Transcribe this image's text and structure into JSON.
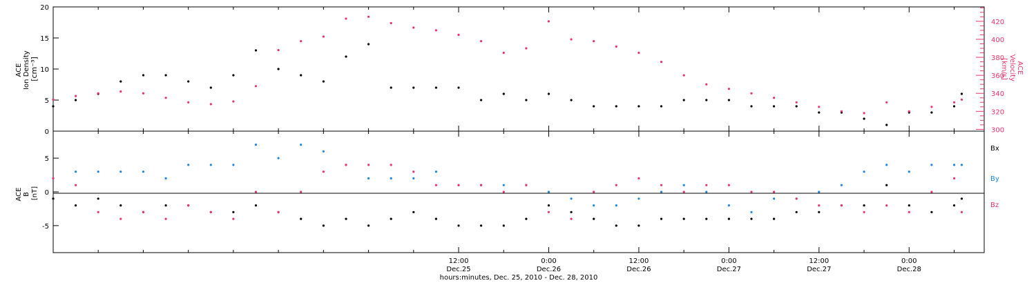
{
  "colors": {
    "black": "#000000",
    "pink": "#e8336b",
    "blue": "#1c86e0"
  },
  "chart_data": [
    {
      "type": "scatter",
      "panel": "top",
      "x_unit": "hours since Dec.25 00:00",
      "xlim": [
        -42,
        82
      ],
      "left_axis": {
        "label_lines": [
          "ACE",
          "Ion Density",
          "[cm⁻³]"
        ],
        "ylim": [
          0,
          20
        ],
        "ticks": [
          "0",
          "5",
          "10",
          "15",
          "20"
        ]
      },
      "right_axis": {
        "label_lines": [
          "ACE",
          "Velocity",
          "[km/s]"
        ],
        "ylim": [
          298,
          436
        ],
        "ticks": [
          "300",
          "320",
          "340",
          "360",
          "380",
          "400",
          "420"
        ]
      },
      "series": [
        {
          "color": "black",
          "axis": "left",
          "x": [
            -42,
            -39,
            -36,
            -33,
            -30,
            -27,
            -24,
            -21,
            -18,
            -15,
            -12,
            -9,
            -6,
            -3,
            0,
            3,
            6,
            9,
            12,
            15,
            18,
            21,
            24,
            27,
            30,
            33,
            36,
            39,
            42,
            45,
            48,
            51,
            54,
            57,
            60,
            63,
            66,
            69,
            72,
            75,
            78,
            79
          ],
          "y": [
            4,
            5,
            6,
            8,
            9,
            9,
            8,
            7,
            9,
            13,
            10,
            9,
            8,
            12,
            14,
            7,
            7,
            7,
            7,
            5,
            6,
            5,
            6,
            5,
            4,
            4,
            4,
            4,
            5,
            5,
            5,
            4,
            4,
            4,
            3,
            3,
            2,
            1,
            3,
            3,
            4,
            6
          ]
        },
        {
          "color": "pink",
          "axis": "right",
          "x": [
            -42,
            -39,
            -36,
            -33,
            -30,
            -27,
            -24,
            -21,
            -18,
            -15,
            -12,
            -9,
            -6,
            -3,
            0,
            3,
            6,
            9,
            12,
            15,
            18,
            21,
            24,
            27,
            30,
            33,
            36,
            39,
            42,
            45,
            48,
            51,
            54,
            57,
            60,
            63,
            66,
            69,
            72,
            75,
            78,
            79
          ],
          "y": [
            333,
            337,
            340,
            342,
            340,
            335,
            330,
            328,
            331,
            348,
            388,
            398,
            403,
            423,
            425,
            418,
            413,
            410,
            405,
            398,
            385,
            390,
            420,
            400,
            398,
            392,
            385,
            375,
            360,
            350,
            345,
            340,
            335,
            330,
            325,
            320,
            318,
            330,
            320,
            325,
            330,
            333
          ]
        }
      ]
    },
    {
      "type": "scatter",
      "panel": "bottom",
      "x_unit": "hours since Dec.25 00:00",
      "xlim": [
        -42,
        82
      ],
      "y_axis": {
        "label_lines": [
          "ACE",
          "B",
          "[nT]"
        ],
        "ylim": [
          -9,
          9
        ],
        "ticks": [
          "-5",
          "0",
          "5"
        ]
      },
      "legend": [
        "Bx",
        "By",
        "Bz"
      ],
      "legend_placement": "right",
      "series": [
        {
          "name": "Bx",
          "color": "black",
          "x": [
            -42,
            -39,
            -36,
            -33,
            -30,
            -27,
            -24,
            -21,
            -18,
            -15,
            -12,
            -9,
            -6,
            -3,
            0,
            3,
            6,
            9,
            12,
            15,
            18,
            21,
            24,
            27,
            30,
            33,
            36,
            39,
            42,
            45,
            48,
            51,
            54,
            57,
            60,
            63,
            66,
            69,
            72,
            75,
            78,
            79
          ],
          "y": [
            -1,
            -2,
            -1,
            -2,
            -3,
            -2,
            -2,
            -3,
            -3,
            -2,
            -3,
            -4,
            -5,
            -4,
            -5,
            -4,
            -3,
            -4,
            -5,
            -5,
            -5,
            -4,
            -2,
            -3,
            -4,
            -5,
            -5,
            -4,
            -4,
            -4,
            -4,
            -4,
            -4,
            -3,
            -3,
            -2,
            -2,
            1,
            -2,
            -3,
            -2,
            -1
          ]
        },
        {
          "name": "By",
          "color": "blue",
          "x": [
            -42,
            -39,
            -36,
            -33,
            -30,
            -27,
            -24,
            -21,
            -18,
            -15,
            -12,
            -9,
            -6,
            -3,
            0,
            3,
            6,
            9,
            12,
            15,
            18,
            21,
            24,
            27,
            30,
            33,
            36,
            39,
            42,
            45,
            48,
            51,
            54,
            57,
            60,
            63,
            66,
            69,
            72,
            75,
            78,
            79
          ],
          "y": [
            2,
            3,
            3,
            3,
            3,
            2,
            4,
            4,
            4,
            7,
            5,
            7,
            6,
            4,
            2,
            2,
            2,
            3,
            1,
            1,
            1,
            1,
            0,
            -1,
            -2,
            -2,
            -1,
            0,
            1,
            0,
            -2,
            -3,
            -1,
            -1,
            0,
            1,
            3,
            4,
            3,
            4,
            4,
            4
          ]
        },
        {
          "name": "Bz",
          "color": "pink",
          "x": [
            -42,
            -39,
            -36,
            -33,
            -30,
            -27,
            -24,
            -21,
            -18,
            -15,
            -12,
            -9,
            -6,
            -3,
            0,
            3,
            6,
            9,
            12,
            15,
            18,
            21,
            24,
            27,
            30,
            33,
            36,
            39,
            42,
            45,
            48,
            51,
            54,
            57,
            60,
            63,
            66,
            69,
            72,
            75,
            78,
            79
          ],
          "y": [
            2,
            1,
            -3,
            -4,
            -3,
            -4,
            -2,
            -3,
            -4,
            0,
            -3,
            0,
            3,
            4,
            4,
            4,
            3,
            1,
            1,
            1,
            0,
            1,
            -3,
            -4,
            0,
            1,
            2,
            1,
            0,
            1,
            1,
            0,
            0,
            -1,
            -2,
            -2,
            -3,
            -2,
            -3,
            0,
            2,
            -3
          ]
        }
      ]
    }
  ],
  "x_axis": {
    "ticks": [
      {
        "time": "12:00",
        "date": "Dec.25",
        "hour": 12
      },
      {
        "time": "0:00",
        "date": "Dec.26",
        "hour": 24
      },
      {
        "time": "12:00",
        "date": "Dec.26",
        "hour": 36
      },
      {
        "time": "0:00",
        "date": "Dec.27",
        "hour": 48
      },
      {
        "time": "12:00",
        "date": "Dec.27",
        "hour": 60
      },
      {
        "time": "0:00",
        "date": "Dec.28",
        "hour": 72
      }
    ],
    "label": "hours:minutes, Dec. 25, 2010 - Dec. 28, 2010"
  }
}
